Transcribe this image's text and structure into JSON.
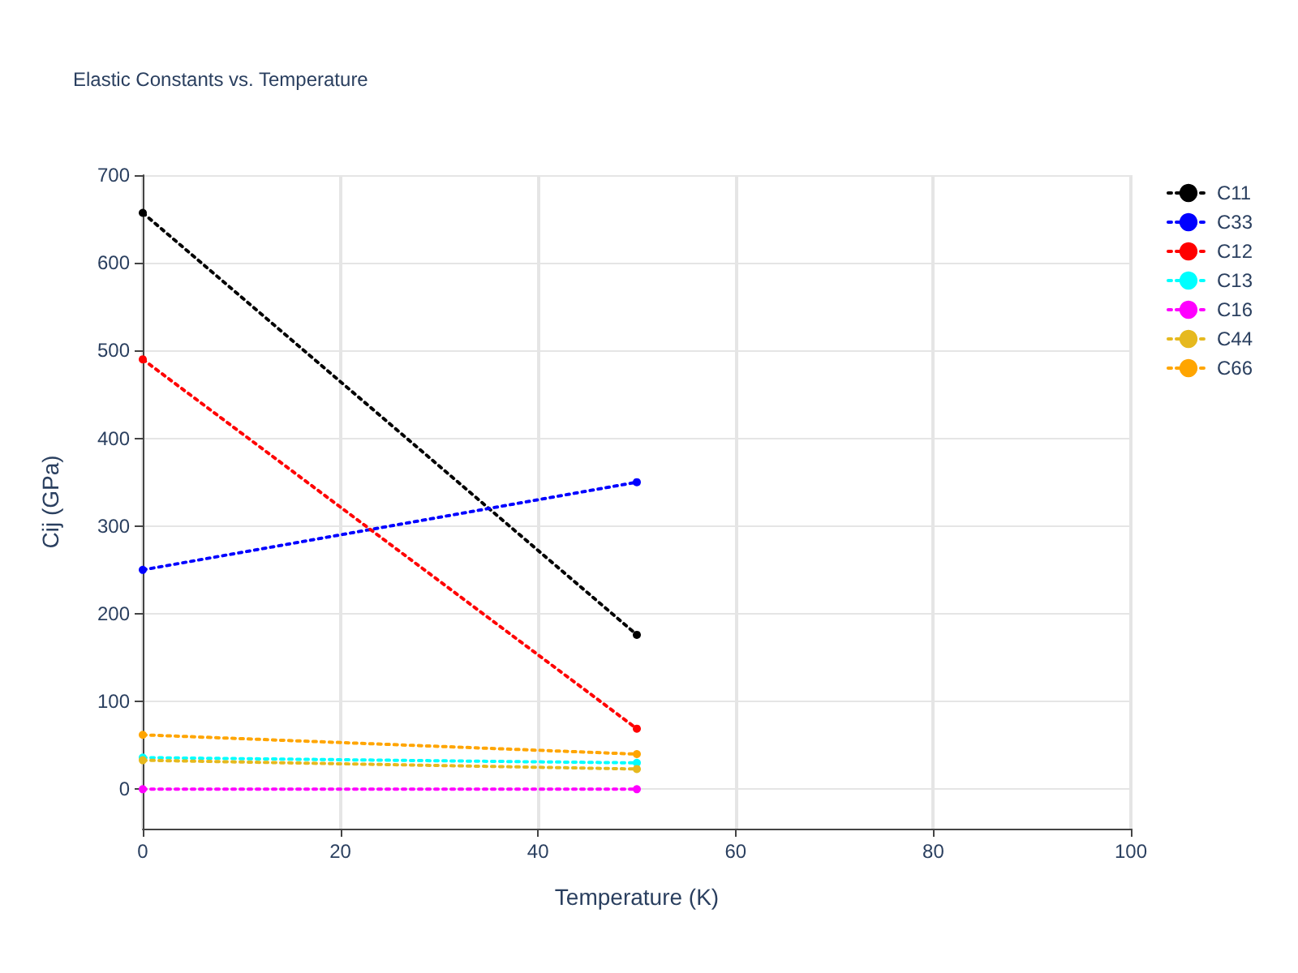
{
  "chart_data": {
    "type": "line",
    "title": "Elastic Constants vs. Temperature",
    "xlabel": "Temperature (K)",
    "ylabel": "Cij (GPa)",
    "x": [
      0,
      50
    ],
    "series": [
      {
        "name": "C11",
        "color": "#000000",
        "values": [
          657,
          176
        ]
      },
      {
        "name": "C33",
        "color": "#0000ff",
        "values": [
          250,
          350
        ]
      },
      {
        "name": "C12",
        "color": "#ff0000",
        "values": [
          490,
          69
        ]
      },
      {
        "name": "C13",
        "color": "#00ffff",
        "values": [
          36,
          30
        ]
      },
      {
        "name": "C16",
        "color": "#ff00ff",
        "values": [
          0,
          0
        ]
      },
      {
        "name": "C44",
        "color": "#e6b91e",
        "values": [
          33,
          23
        ]
      },
      {
        "name": "C66",
        "color": "#ffa500",
        "values": [
          62,
          40
        ]
      }
    ],
    "xlim": [
      0,
      100
    ],
    "xticks": [
      0,
      20,
      40,
      60,
      80,
      100
    ],
    "ylim": [
      -45,
      700
    ],
    "yticks": [
      0,
      100,
      200,
      300,
      400,
      500,
      600,
      700
    ],
    "grid": true,
    "legend": "top right",
    "marker": "circle",
    "line_style": "dotted"
  }
}
